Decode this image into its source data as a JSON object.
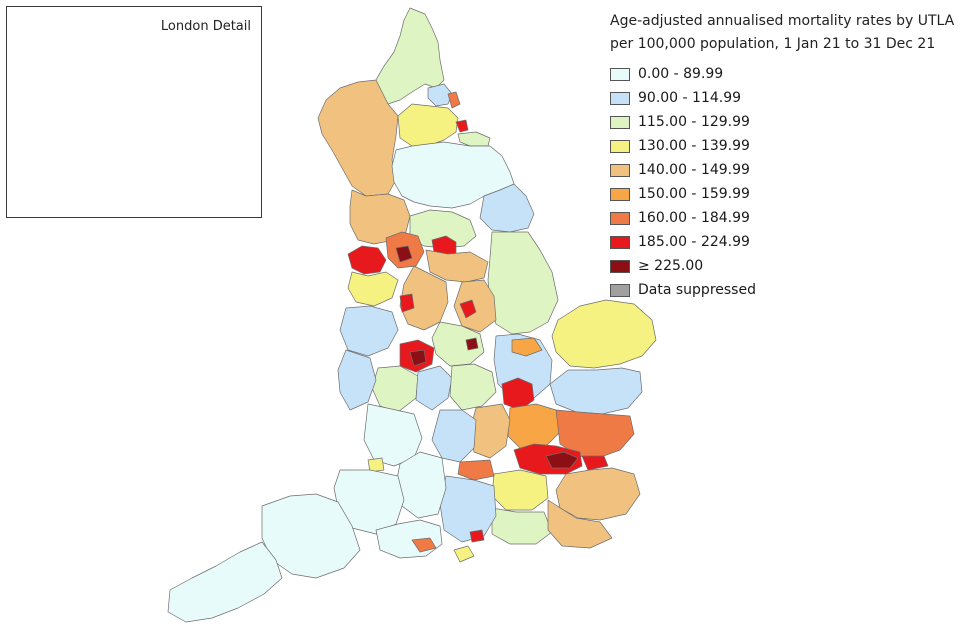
{
  "inset": {
    "title": "London Detail"
  },
  "legend": {
    "title_line1": "Age-adjusted annualised mortality rates by UTLA",
    "title_line2": "per 100,000 population, 1 Jan 21 to 31 Dec 21",
    "items": [
      {
        "label": "0.00 - 89.99",
        "color": "#e8fbfb"
      },
      {
        "label": "90.00 - 114.99",
        "color": "#c6e2f9"
      },
      {
        "label": "115.00 - 129.99",
        "color": "#def5c3"
      },
      {
        "label": "130.00 - 139.99",
        "color": "#f6f281"
      },
      {
        "label": "140.00 - 149.99",
        "color": "#f1c27f"
      },
      {
        "label": "150.00 - 159.99",
        "color": "#f8a645"
      },
      {
        "label": "160.00 - 184.99",
        "color": "#f07a45"
      },
      {
        "label": "185.00 - 224.99",
        "color": "#e8191c"
      },
      {
        "label": "≥ 225.00",
        "color": "#8b0f14"
      },
      {
        "label": "Data suppressed",
        "color": "#a0a0a0"
      }
    ]
  }
}
